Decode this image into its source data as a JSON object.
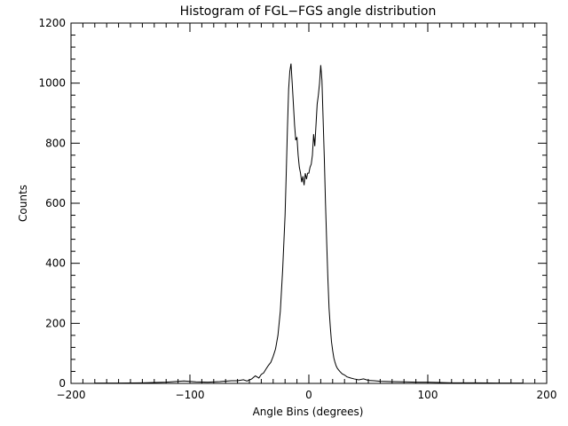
{
  "chart_data": {
    "type": "line",
    "title": "Histogram of FGL−FGS angle distribution",
    "xlabel": "Angle Bins (degrees)",
    "ylabel": "Counts",
    "xlim": [
      -200,
      200
    ],
    "ylim": [
      0,
      1200
    ],
    "x_ticks": [
      -200,
      -100,
      0,
      100,
      200
    ],
    "x_tick_labels": [
      "−200",
      "−100",
      "0",
      "100",
      "200"
    ],
    "y_ticks": [
      0,
      200,
      400,
      600,
      800,
      1000,
      1200
    ],
    "y_tick_labels": [
      "0",
      "200",
      "400",
      "600",
      "800",
      "1000",
      "1200"
    ],
    "grid": false,
    "line_color": "#000000",
    "series": [
      {
        "x": [
          -180,
          -160,
          -140,
          -120,
          -105,
          -95,
          -85,
          -75,
          -65,
          -60,
          -55,
          -52,
          -48,
          -45,
          -42,
          -40,
          -38,
          -36,
          -34,
          -32,
          -30,
          -28,
          -26,
          -24,
          -22,
          -20,
          -19,
          -18,
          -17,
          -16,
          -15,
          -14,
          -13,
          -12,
          -11,
          -10,
          -9,
          -8,
          -7,
          -6,
          -5,
          -4,
          -3,
          -2,
          -1,
          0,
          1,
          2,
          3,
          4,
          5,
          6,
          7,
          8,
          9,
          10,
          11,
          12,
          13,
          14,
          15,
          16,
          17,
          18,
          19,
          20,
          21,
          22,
          23,
          24,
          26,
          28,
          30,
          32,
          35,
          38,
          42,
          46,
          50,
          55,
          60,
          70,
          80,
          90,
          100,
          110,
          120,
          140,
          160,
          180
        ],
        "y": [
          1,
          1,
          2,
          4,
          8,
          5,
          4,
          6,
          9,
          9,
          12,
          8,
          15,
          25,
          18,
          30,
          35,
          48,
          60,
          70,
          90,
          115,
          160,
          240,
          380,
          560,
          700,
          850,
          980,
          1040,
          1065,
          1000,
          930,
          860,
          810,
          820,
          760,
          720,
          700,
          670,
          690,
          660,
          700,
          680,
          700,
          700,
          720,
          730,
          760,
          830,
          790,
          860,
          930,
          960,
          1000,
          1060,
          1010,
          880,
          750,
          600,
          470,
          350,
          250,
          190,
          140,
          110,
          85,
          70,
          58,
          50,
          40,
          32,
          28,
          22,
          18,
          15,
          12,
          15,
          10,
          9,
          7,
          6,
          5,
          4,
          4,
          3,
          2,
          2,
          1,
          1
        ]
      }
    ]
  }
}
